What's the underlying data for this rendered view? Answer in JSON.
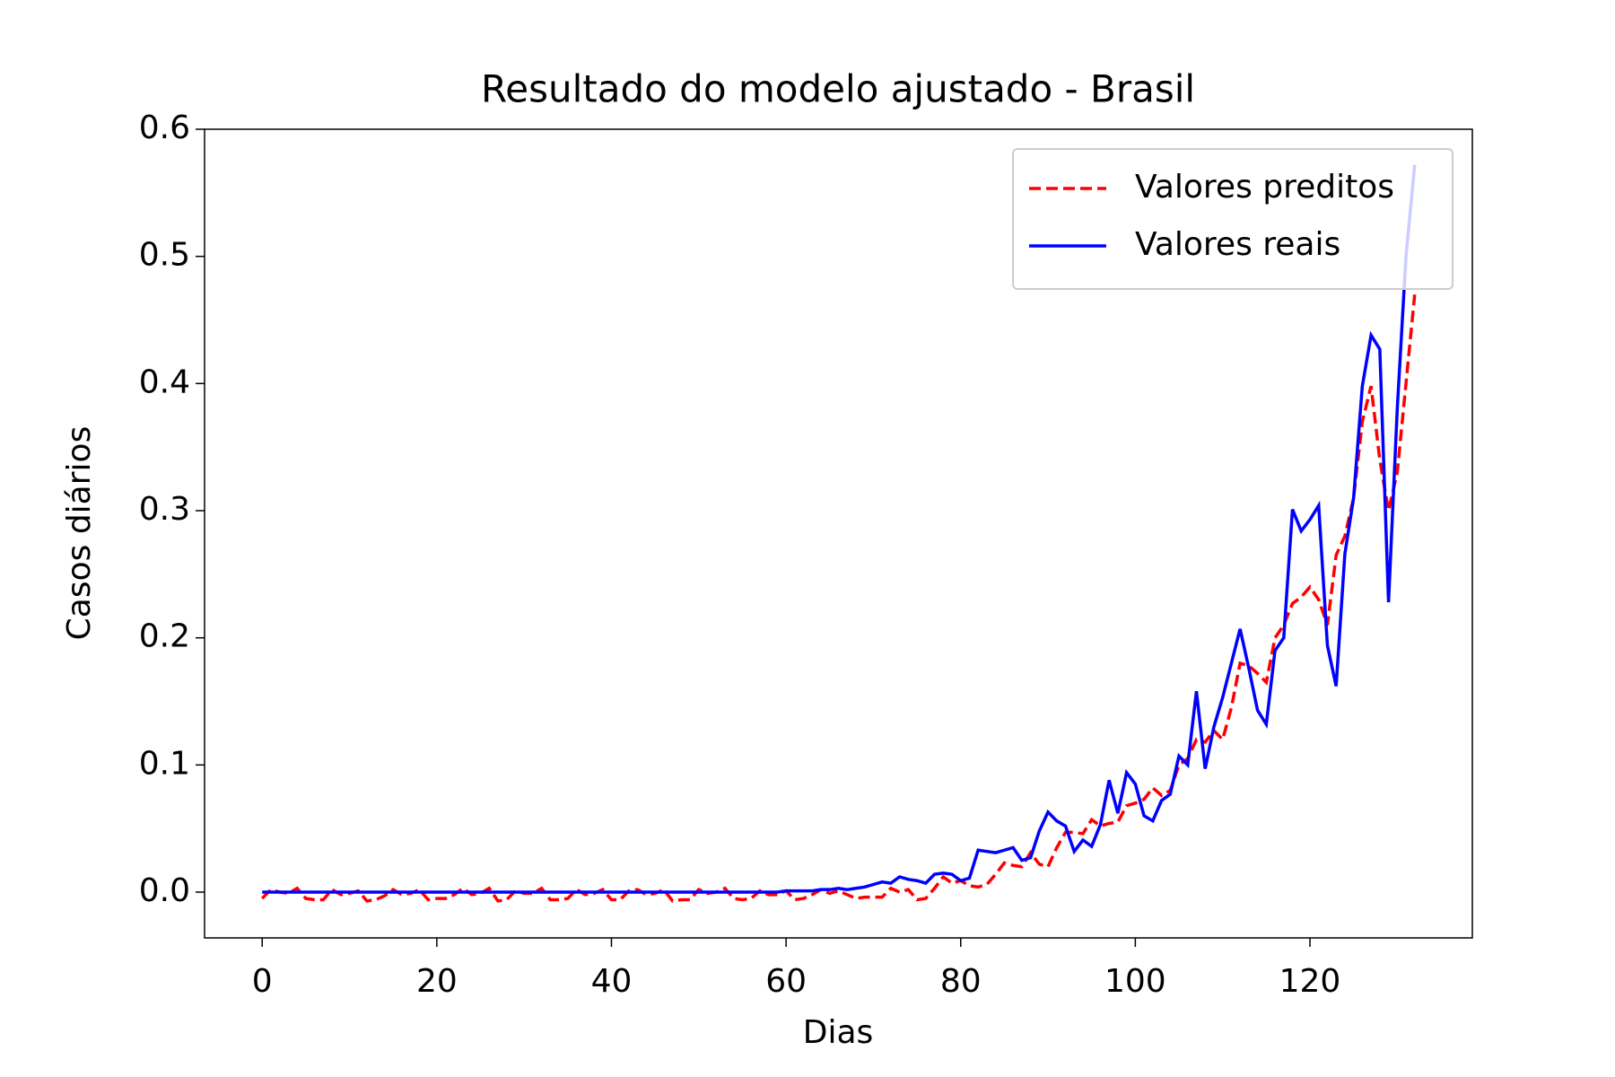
{
  "chart_data": {
    "type": "line",
    "title": "Resultado do modelo ajustado - Brasil",
    "x_label": "Dias",
    "y_label": "Casos diários",
    "legend": "upper right",
    "x": [
      0,
      1,
      2,
      3,
      4,
      5,
      6,
      7,
      8,
      9,
      10,
      11,
      12,
      13,
      14,
      15,
      16,
      17,
      18,
      19,
      20,
      21,
      22,
      23,
      24,
      25,
      26,
      27,
      28,
      29,
      30,
      31,
      32,
      33,
      34,
      35,
      36,
      37,
      38,
      39,
      40,
      41,
      42,
      43,
      44,
      45,
      46,
      47,
      48,
      49,
      50,
      51,
      52,
      53,
      54,
      55,
      56,
      57,
      58,
      59,
      60,
      61,
      62,
      63,
      64,
      65,
      66,
      67,
      68,
      69,
      70,
      71,
      72,
      73,
      74,
      75,
      76,
      77,
      78,
      79,
      80,
      81,
      82,
      83,
      84,
      85,
      86,
      87,
      88,
      89,
      90,
      91,
      92,
      93,
      94,
      95,
      96,
      97,
      98,
      99,
      100,
      101,
      102,
      103,
      104,
      105,
      106,
      107,
      108,
      109,
      110,
      111,
      112,
      113,
      114,
      115,
      116,
      117,
      118,
      119,
      120,
      121,
      122,
      123,
      124,
      125,
      126,
      127,
      128,
      129,
      130,
      131,
      132
    ],
    "series": [
      {
        "name": "Valores preditos",
        "color": "#ff0000",
        "linestyle": "--",
        "values": [
          -0.005,
          0.002,
          0,
          -0.001,
          0.003,
          -0.005,
          -0.006,
          -0.006,
          0.002,
          -0.002,
          -0.001,
          0.001,
          -0.007,
          -0.006,
          -0.003,
          0.002,
          -0.002,
          -0.001,
          0.002,
          -0.006,
          -0.005,
          -0.005,
          -0.002,
          0.003,
          -0.002,
          -0.001,
          0.003,
          -0.007,
          -0.006,
          0.001,
          -0.001,
          -0.001,
          0.003,
          -0.006,
          -0.006,
          -0.005,
          0.002,
          -0.002,
          -0.001,
          0.002,
          -0.006,
          -0.006,
          0.001,
          0.002,
          -0.002,
          -0.001,
          0.002,
          -0.007,
          -0.006,
          -0.006,
          0.002,
          -0.001,
          0,
          0.003,
          -0.005,
          -0.006,
          -0.005,
          0.001,
          -0.002,
          -0.002,
          0.001,
          -0.006,
          -0.005,
          -0.002,
          0.002,
          -0.001,
          0.001,
          -0.002,
          -0.005,
          -0.004,
          -0.004,
          -0.004,
          0.003,
          0,
          0.002,
          -0.006,
          -0.005,
          0.003,
          0.012,
          0.007,
          0.009,
          0.005,
          0.004,
          0.006,
          0.014,
          0.023,
          0.021,
          0.02,
          0.031,
          0.022,
          0.02,
          0.035,
          0.047,
          0.047,
          0.046,
          0.057,
          0.052,
          0.054,
          0.055,
          0.068,
          0.07,
          0.073,
          0.082,
          0.076,
          0.08,
          0.1,
          0.105,
          0.12,
          0.118,
          0.127,
          0.12,
          0.145,
          0.18,
          0.178,
          0.172,
          0.165,
          0.2,
          0.21,
          0.227,
          0.232,
          0.24,
          0.23,
          0.21,
          0.265,
          0.28,
          0.31,
          0.37,
          0.398,
          0.34,
          0.3,
          0.33,
          0.4,
          0.47
        ]
      },
      {
        "name": "Valores reais",
        "color": "#0000ff",
        "linestyle": "-",
        "values": [
          0,
          0,
          0,
          0,
          0,
          0,
          0,
          0,
          0,
          0,
          0,
          0,
          0,
          0,
          0,
          0,
          0,
          0,
          0,
          0,
          0,
          0,
          0,
          0,
          0,
          0,
          0,
          0,
          0,
          0,
          0,
          0,
          0,
          0,
          0,
          0,
          0,
          0,
          0,
          0,
          0,
          0,
          0,
          0,
          0,
          0,
          0,
          0,
          0,
          0,
          0,
          0,
          0,
          0,
          0,
          0,
          0,
          0,
          0,
          0,
          0.001,
          0.001,
          0.001,
          0.001,
          0.002,
          0.002,
          0.003,
          0.002,
          0.003,
          0.004,
          0.006,
          0.008,
          0.007,
          0.012,
          0.01,
          0.009,
          0.007,
          0.014,
          0.015,
          0.014,
          0.009,
          0.011,
          0.033,
          0.032,
          0.031,
          0.033,
          0.035,
          0.025,
          0.027,
          0.048,
          0.063,
          0.056,
          0.052,
          0.032,
          0.041,
          0.036,
          0.053,
          0.088,
          0.062,
          0.094,
          0.085,
          0.06,
          0.056,
          0.072,
          0.077,
          0.107,
          0.1,
          0.158,
          0.097,
          0.13,
          0.153,
          0.18,
          0.207,
          0.176,
          0.143,
          0.132,
          0.19,
          0.2,
          0.301,
          0.284,
          0.293,
          0.304,
          0.194,
          0.162,
          0.266,
          0.31,
          0.398,
          0.438,
          0.427,
          0.228,
          0.38,
          0.5,
          0.572
        ]
      }
    ],
    "xlim": [
      -6.6,
      138.6
    ],
    "xticks": [
      0,
      20,
      40,
      60,
      80,
      100,
      120
    ],
    "ylim": [
      -0.036,
      0.6
    ],
    "yticks": [
      {
        "value": 0,
        "label": "0.0"
      },
      0.1,
      0.2,
      0.3,
      0.4,
      0.5,
      0.6
    ]
  }
}
